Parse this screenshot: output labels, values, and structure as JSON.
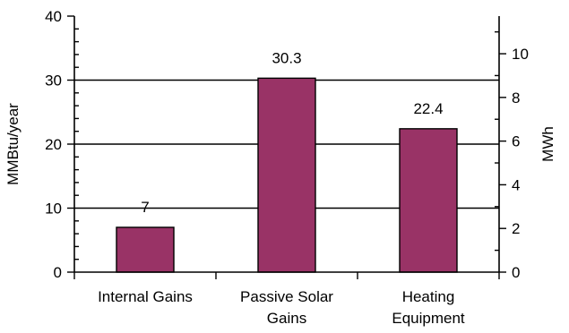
{
  "chart_data": {
    "type": "bar",
    "categories": [
      [
        "Internal Gains"
      ],
      [
        "Passive Solar",
        "Gains"
      ],
      [
        "Heating",
        "Equipment"
      ]
    ],
    "values": [
      7,
      30.3,
      22.4
    ],
    "data_labels": [
      "7",
      "30.3",
      "22.4"
    ],
    "ylabel": "MMBtu/year",
    "ylim": [
      0,
      40
    ],
    "yticks": [
      "0",
      "10",
      "20",
      "30",
      "40"
    ],
    "y2label": "MWh",
    "y2ticks": [
      "0",
      "2",
      "4",
      "6",
      "8",
      "10"
    ],
    "y2_per_y1": 0.29307,
    "grid": true,
    "bar_color": "#993366",
    "bar_edge": "#000000"
  }
}
